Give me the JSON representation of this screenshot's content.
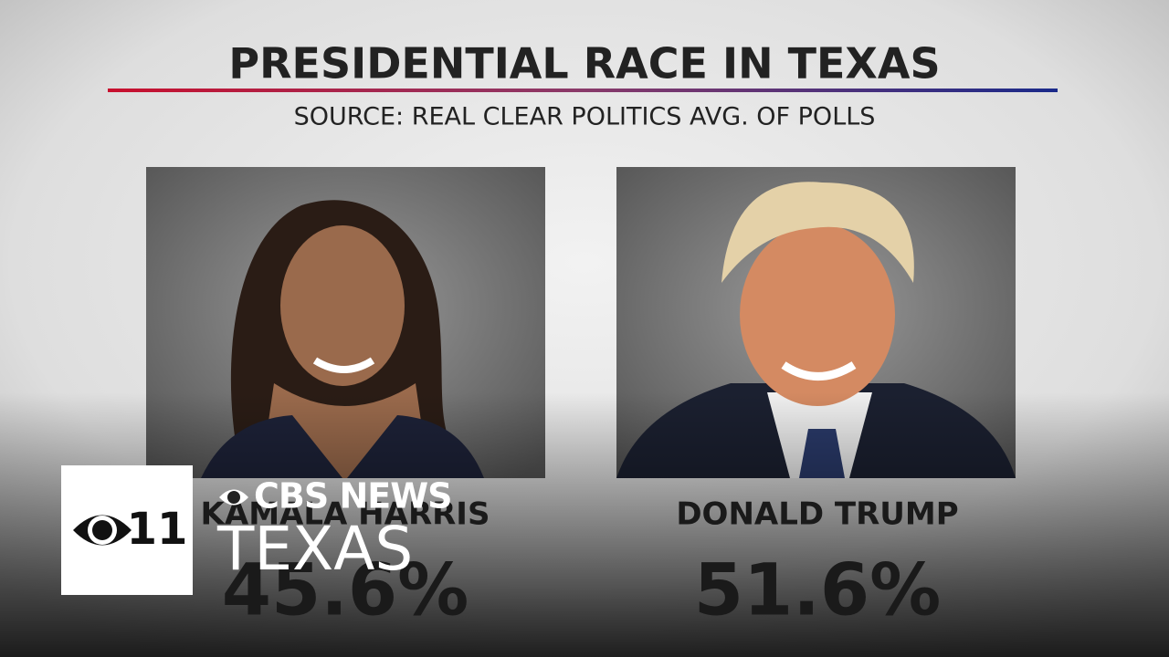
{
  "header": {
    "title": "PRESIDENTIAL RACE IN TEXAS",
    "source": "SOURCE: REAL CLEAR POLITICS AVG. OF POLLS"
  },
  "candidates": [
    {
      "name": "KAMALA HARRIS",
      "share": "45.6%"
    },
    {
      "name": "DONALD TRUMP",
      "share": "51.6%"
    }
  ],
  "logo": {
    "channel": "11",
    "network": "CBS NEWS",
    "region": "TEXAS"
  }
}
